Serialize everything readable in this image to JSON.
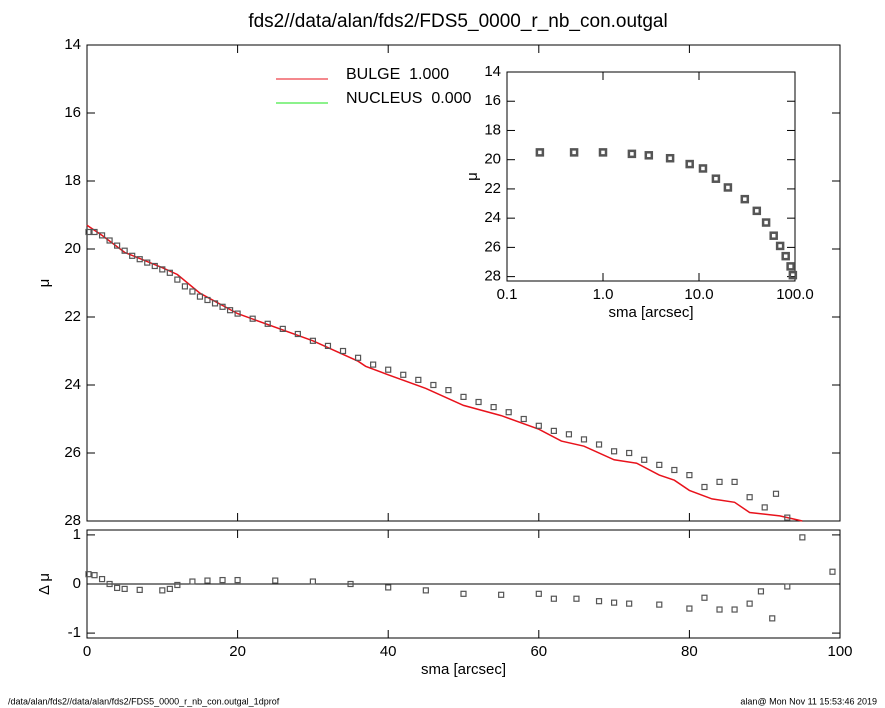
{
  "chart_data": [
    {
      "type": "scatter",
      "title": "fds2//data/alan/fds2/FDS5_0000_r_nb_con.outgal",
      "ylabel": "μ",
      "x": [
        0.2,
        1,
        2,
        3,
        4,
        5,
        6,
        7,
        8,
        9,
        10,
        11,
        12,
        13,
        14,
        15,
        16,
        17,
        18,
        19,
        20,
        22,
        24,
        26,
        28,
        30,
        32,
        34,
        36,
        38,
        40,
        42,
        44,
        46,
        48,
        50,
        52,
        54,
        56,
        58,
        60,
        62,
        64,
        66,
        68,
        70,
        72,
        74,
        76,
        78,
        80,
        82,
        84,
        86,
        88,
        90,
        91.5,
        93
      ],
      "values": [
        19.5,
        19.5,
        19.6,
        19.75,
        19.9,
        20.05,
        20.2,
        20.3,
        20.4,
        20.5,
        20.6,
        20.7,
        20.9,
        21.1,
        21.25,
        21.4,
        21.5,
        21.6,
        21.7,
        21.8,
        21.9,
        22.05,
        22.2,
        22.35,
        22.5,
        22.7,
        22.85,
        23.0,
        23.2,
        23.4,
        23.55,
        23.7,
        23.85,
        24.0,
        24.15,
        24.35,
        24.5,
        24.65,
        24.8,
        25.0,
        25.2,
        25.35,
        25.45,
        25.6,
        25.75,
        25.95,
        26.0,
        26.2,
        26.35,
        26.5,
        26.65,
        27.0,
        26.85,
        26.85,
        27.3,
        27.6,
        27.2,
        27.9
      ],
      "color": "#555555",
      "series": [
        {
          "name": "BULGE  1.000",
          "color": "#e8121b",
          "x": [
            0,
            2,
            5,
            10,
            12,
            15,
            20,
            30,
            36,
            37,
            40,
            45,
            50,
            55,
            60,
            63,
            66,
            70,
            73,
            76,
            78,
            80,
            83,
            86,
            88,
            92,
            95
          ],
          "values": [
            19.3,
            19.6,
            20.1,
            20.55,
            20.75,
            21.3,
            21.9,
            22.7,
            23.3,
            23.45,
            23.7,
            24.1,
            24.6,
            24.9,
            25.3,
            25.65,
            25.8,
            26.2,
            26.3,
            26.65,
            26.8,
            27.1,
            27.35,
            27.45,
            27.75,
            27.85,
            28.0
          ]
        },
        {
          "name": "NUCLEUS  0.000",
          "color": "#19e619"
        }
      ],
      "xlim": [
        0,
        100
      ],
      "ylim": [
        28,
        14
      ],
      "yticks": [
        14,
        16,
        18,
        20,
        22,
        24,
        26,
        28
      ]
    },
    {
      "type": "scatter",
      "xlabel": "sma [arcsec]",
      "ylabel": "μ",
      "log_x": true,
      "x": [
        0.22,
        0.5,
        1,
        2,
        3,
        5,
        8,
        11,
        15,
        20,
        30,
        40,
        50,
        60,
        70,
        80,
        90,
        95
      ],
      "values": [
        19.5,
        19.5,
        19.5,
        19.6,
        19.7,
        19.9,
        20.3,
        20.6,
        21.3,
        21.9,
        22.7,
        23.5,
        24.3,
        25.2,
        25.9,
        26.6,
        27.3,
        27.9
      ],
      "color": "#555555",
      "xlim": [
        0.1,
        100
      ],
      "ylim": [
        28.3,
        14
      ],
      "xticks": [
        {
          "value": 0.1,
          "label": "0.1"
        },
        {
          "value": 1,
          "label": "1.0"
        },
        {
          "value": 10,
          "label": "10.0"
        },
        {
          "value": 100,
          "label": "100.0"
        }
      ],
      "yticks": [
        14,
        16,
        18,
        20,
        22,
        24,
        26,
        28
      ]
    },
    {
      "type": "scatter",
      "xlabel": "sma [arcsec]",
      "ylabel": "Δ μ",
      "x": [
        0.2,
        1,
        2,
        3,
        4,
        5,
        7,
        10,
        11,
        12,
        14,
        16,
        18,
        20,
        25,
        30,
        35,
        40,
        45,
        50,
        55,
        60,
        62,
        65,
        68,
        70,
        72,
        76,
        80,
        82,
        84,
        86,
        88,
        89.5,
        91,
        93,
        95,
        99
      ],
      "values": [
        0.2,
        0.18,
        0.1,
        0.0,
        -0.08,
        -0.1,
        -0.12,
        -0.13,
        -0.1,
        -0.02,
        0.05,
        0.07,
        0.08,
        0.08,
        0.07,
        0.05,
        0.0,
        -0.07,
        -0.13,
        -0.2,
        -0.22,
        -0.2,
        -0.3,
        -0.3,
        -0.35,
        -0.38,
        -0.4,
        -0.42,
        -0.5,
        -0.28,
        -0.52,
        -0.52,
        -0.4,
        -0.15,
        -0.7,
        -0.05,
        0.95,
        0.25
      ],
      "color": "#555555",
      "xlim": [
        0,
        100
      ],
      "ylim": [
        -1.1,
        1.1
      ],
      "xticks": [
        0,
        20,
        40,
        60,
        80,
        100
      ],
      "yticks": [
        1,
        0,
        -1
      ],
      "zero_line": true
    }
  ],
  "footer": {
    "left": "/data/alan/fds2//data/alan/fds2/FDS5_0000_r_nb_con.outgal_1dprof",
    "right": "alan@  Mon Nov 11 15:53:46 2019"
  }
}
